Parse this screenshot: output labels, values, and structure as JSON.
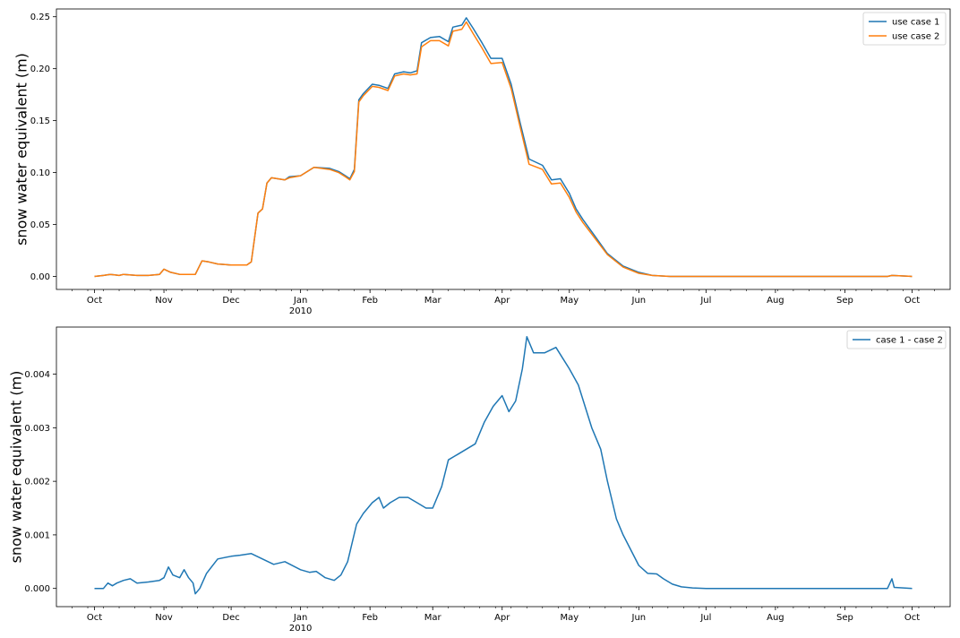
{
  "chart_data": [
    {
      "type": "line",
      "title": "",
      "xlabel": "",
      "ylabel": "snow water equivalent (m)",
      "xlim": [
        "2009-09-14",
        "2010-10-18"
      ],
      "ylim": [
        -0.0125,
        0.2575
      ],
      "yticks": [
        0.0,
        0.05,
        0.1,
        0.15,
        0.2,
        0.25
      ],
      "ytick_labels": [
        "0.00",
        "0.05",
        "0.10",
        "0.15",
        "0.20",
        "0.25"
      ],
      "xticks": [
        "2009-10-01",
        "2009-11-01",
        "2009-12-01",
        "2010-01-01",
        "2010-02-01",
        "2010-03-01",
        "2010-04-01",
        "2010-05-01",
        "2010-06-01",
        "2010-07-01",
        "2010-08-01",
        "2010-09-01",
        "2010-10-01"
      ],
      "xtick_labels": [
        "Oct",
        "Nov",
        "Dec",
        "Jan",
        "Feb",
        "Mar",
        "Apr",
        "May",
        "Jun",
        "Jul",
        "Aug",
        "Sep",
        "Oct"
      ],
      "year_label": "2010",
      "grid": false,
      "legend_position": "upper right",
      "series": [
        {
          "name": "use case 1",
          "color": "#1f77b4",
          "x": [
            "2009-10-01",
            "2009-10-05",
            "2009-10-08",
            "2009-10-12",
            "2009-10-14",
            "2009-10-20",
            "2009-10-25",
            "2009-10-30",
            "2009-11-01",
            "2009-11-04",
            "2009-11-08",
            "2009-11-15",
            "2009-11-18",
            "2009-11-21",
            "2009-11-25",
            "2009-12-01",
            "2009-12-08",
            "2009-12-10",
            "2009-12-13",
            "2009-12-15",
            "2009-12-17",
            "2009-12-19",
            "2009-12-25",
            "2009-12-27",
            "2010-01-01",
            "2010-01-07",
            "2010-01-14",
            "2010-01-18",
            "2010-01-21",
            "2010-01-23",
            "2010-01-25",
            "2010-01-27",
            "2010-01-29",
            "2010-02-02",
            "2010-02-05",
            "2010-02-09",
            "2010-02-12",
            "2010-02-16",
            "2010-02-19",
            "2010-02-22",
            "2010-02-24",
            "2010-02-28",
            "2010-03-04",
            "2010-03-08",
            "2010-03-10",
            "2010-03-14",
            "2010-03-16",
            "2010-03-19",
            "2010-03-23",
            "2010-03-27",
            "2010-04-01",
            "2010-04-05",
            "2010-04-09",
            "2010-04-13",
            "2010-04-19",
            "2010-04-23",
            "2010-04-27",
            "2010-05-01",
            "2010-05-04",
            "2010-05-07",
            "2010-05-12",
            "2010-05-18",
            "2010-05-25",
            "2010-06-01",
            "2010-06-07",
            "2010-06-15",
            "2010-07-01",
            "2010-08-01",
            "2010-09-01",
            "2010-09-20",
            "2010-09-22",
            "2010-10-01"
          ],
          "y": [
            0.0,
            0.001,
            0.002,
            0.001,
            0.002,
            0.001,
            0.001,
            0.002,
            0.007,
            0.004,
            0.002,
            0.002,
            0.015,
            0.014,
            0.012,
            0.011,
            0.011,
            0.014,
            0.061,
            0.065,
            0.09,
            0.095,
            0.093,
            0.096,
            0.097,
            0.105,
            0.104,
            0.101,
            0.097,
            0.094,
            0.103,
            0.17,
            0.176,
            0.185,
            0.184,
            0.181,
            0.195,
            0.197,
            0.196,
            0.198,
            0.225,
            0.23,
            0.231,
            0.226,
            0.24,
            0.242,
            0.249,
            0.239,
            0.225,
            0.21,
            0.21,
            0.185,
            0.148,
            0.113,
            0.107,
            0.093,
            0.094,
            0.08,
            0.065,
            0.055,
            0.04,
            0.022,
            0.01,
            0.004,
            0.001,
            0.0,
            0.0,
            0.0,
            0.0,
            0.0,
            0.001,
            0.0
          ]
        },
        {
          "name": "use case 2",
          "color": "#ff7f0e",
          "x": [
            "2009-10-01",
            "2009-10-05",
            "2009-10-08",
            "2009-10-12",
            "2009-10-14",
            "2009-10-20",
            "2009-10-25",
            "2009-10-30",
            "2009-11-01",
            "2009-11-04",
            "2009-11-08",
            "2009-11-15",
            "2009-11-18",
            "2009-11-21",
            "2009-11-25",
            "2009-12-01",
            "2009-12-08",
            "2009-12-10",
            "2009-12-13",
            "2009-12-15",
            "2009-12-17",
            "2009-12-19",
            "2009-12-25",
            "2009-12-27",
            "2010-01-01",
            "2010-01-07",
            "2010-01-14",
            "2010-01-18",
            "2010-01-21",
            "2010-01-23",
            "2010-01-25",
            "2010-01-27",
            "2010-01-29",
            "2010-02-02",
            "2010-02-05",
            "2010-02-09",
            "2010-02-12",
            "2010-02-16",
            "2010-02-19",
            "2010-02-22",
            "2010-02-24",
            "2010-02-28",
            "2010-03-04",
            "2010-03-08",
            "2010-03-10",
            "2010-03-14",
            "2010-03-16",
            "2010-03-19",
            "2010-03-23",
            "2010-03-27",
            "2010-04-01",
            "2010-04-05",
            "2010-04-09",
            "2010-04-13",
            "2010-04-19",
            "2010-04-23",
            "2010-04-27",
            "2010-05-01",
            "2010-05-04",
            "2010-05-07",
            "2010-05-12",
            "2010-05-18",
            "2010-05-25",
            "2010-06-01",
            "2010-06-07",
            "2010-06-15",
            "2010-07-01",
            "2010-08-01",
            "2010-09-01",
            "2010-09-20",
            "2010-09-22",
            "2010-10-01"
          ],
          "y": [
            0.0,
            0.001,
            0.002,
            0.001,
            0.002,
            0.001,
            0.001,
            0.002,
            0.007,
            0.004,
            0.002,
            0.002,
            0.015,
            0.014,
            0.012,
            0.011,
            0.011,
            0.014,
            0.061,
            0.065,
            0.09,
            0.095,
            0.093,
            0.095,
            0.097,
            0.105,
            0.103,
            0.1,
            0.096,
            0.093,
            0.101,
            0.168,
            0.174,
            0.183,
            0.182,
            0.179,
            0.193,
            0.195,
            0.194,
            0.195,
            0.221,
            0.227,
            0.227,
            0.222,
            0.236,
            0.238,
            0.245,
            0.234,
            0.22,
            0.205,
            0.206,
            0.181,
            0.144,
            0.108,
            0.103,
            0.089,
            0.09,
            0.076,
            0.062,
            0.052,
            0.038,
            0.021,
            0.009,
            0.003,
            0.001,
            0.0,
            0.0,
            0.0,
            0.0,
            0.0,
            0.001,
            0.0
          ]
        }
      ]
    },
    {
      "type": "line",
      "title": "",
      "xlabel": "",
      "ylabel": "snow water equivalent (m)",
      "xlim": [
        "2009-09-14",
        "2010-10-18"
      ],
      "ylim": [
        -0.00034,
        0.00488
      ],
      "yticks": [
        0.0,
        0.001,
        0.002,
        0.003,
        0.004
      ],
      "ytick_labels": [
        "0.000",
        "0.001",
        "0.002",
        "0.003",
        "0.004"
      ],
      "xticks": [
        "2009-10-01",
        "2009-11-01",
        "2009-12-01",
        "2010-01-01",
        "2010-02-01",
        "2010-03-01",
        "2010-04-01",
        "2010-05-01",
        "2010-06-01",
        "2010-07-01",
        "2010-08-01",
        "2010-09-01",
        "2010-10-01"
      ],
      "xtick_labels": [
        "Oct",
        "Nov",
        "Dec",
        "Jan",
        "Feb",
        "Mar",
        "Apr",
        "May",
        "Jun",
        "Jul",
        "Aug",
        "Sep",
        "Oct"
      ],
      "year_label": "2010",
      "grid": false,
      "legend_position": "upper right",
      "series": [
        {
          "name": "case 1 - case 2",
          "color": "#1f77b4",
          "x": [
            "2009-10-01",
            "2009-10-05",
            "2009-10-07",
            "2009-10-09",
            "2009-10-11",
            "2009-10-14",
            "2009-10-17",
            "2009-10-20",
            "2009-10-25",
            "2009-10-30",
            "2009-11-01",
            "2009-11-03",
            "2009-11-05",
            "2009-11-08",
            "2009-11-10",
            "2009-11-12",
            "2009-11-14",
            "2009-11-15",
            "2009-11-17",
            "2009-11-20",
            "2009-11-25",
            "2009-12-01",
            "2009-12-05",
            "2009-12-10",
            "2009-12-15",
            "2009-12-20",
            "2009-12-25",
            "2010-01-01",
            "2010-01-05",
            "2010-01-08",
            "2010-01-12",
            "2010-01-16",
            "2010-01-19",
            "2010-01-22",
            "2010-01-26",
            "2010-01-29",
            "2010-02-02",
            "2010-02-05",
            "2010-02-07",
            "2010-02-10",
            "2010-02-14",
            "2010-02-18",
            "2010-02-22",
            "2010-02-26",
            "2010-03-01",
            "2010-03-05",
            "2010-03-08",
            "2010-03-12",
            "2010-03-16",
            "2010-03-20",
            "2010-03-24",
            "2010-03-28",
            "2010-04-01",
            "2010-04-04",
            "2010-04-07",
            "2010-04-10",
            "2010-04-12",
            "2010-04-15",
            "2010-04-20",
            "2010-04-25",
            "2010-04-28",
            "2010-05-01",
            "2010-05-05",
            "2010-05-08",
            "2010-05-11",
            "2010-05-15",
            "2010-05-18",
            "2010-05-22",
            "2010-05-25",
            "2010-06-01",
            "2010-06-05",
            "2010-06-09",
            "2010-06-12",
            "2010-06-16",
            "2010-06-20",
            "2010-06-25",
            "2010-07-01",
            "2010-07-15",
            "2010-08-01",
            "2010-08-15",
            "2010-09-01",
            "2010-09-20",
            "2010-09-22",
            "2010-09-23",
            "2010-10-01"
          ],
          "y": [
            0.0,
            0.0,
            0.0001,
            5e-05,
            0.0001,
            0.00015,
            0.00018,
            0.0001,
            0.00012,
            0.00015,
            0.0002,
            0.0004,
            0.00025,
            0.0002,
            0.00035,
            0.0002,
            0.0001,
            -0.0001,
            0.0,
            0.00028,
            0.00055,
            0.0006,
            0.00062,
            0.00065,
            0.00055,
            0.00045,
            0.0005,
            0.00035,
            0.0003,
            0.00032,
            0.0002,
            0.00015,
            0.00025,
            0.0005,
            0.0012,
            0.0014,
            0.0016,
            0.0017,
            0.0015,
            0.0016,
            0.0017,
            0.0017,
            0.0016,
            0.0015,
            0.0015,
            0.0019,
            0.0024,
            0.0025,
            0.0026,
            0.0027,
            0.0031,
            0.0034,
            0.0036,
            0.0033,
            0.0035,
            0.0041,
            0.0047,
            0.0044,
            0.0044,
            0.0045,
            0.0043,
            0.0041,
            0.0038,
            0.0034,
            0.003,
            0.0026,
            0.002,
            0.0013,
            0.001,
            0.00043,
            0.00028,
            0.00027,
            0.00018,
            8e-05,
            3e-05,
            1e-05,
            0.0,
            0.0,
            0.0,
            0.0,
            0.0,
            0.0,
            0.00018,
            2e-05,
            0.0
          ]
        }
      ]
    }
  ]
}
